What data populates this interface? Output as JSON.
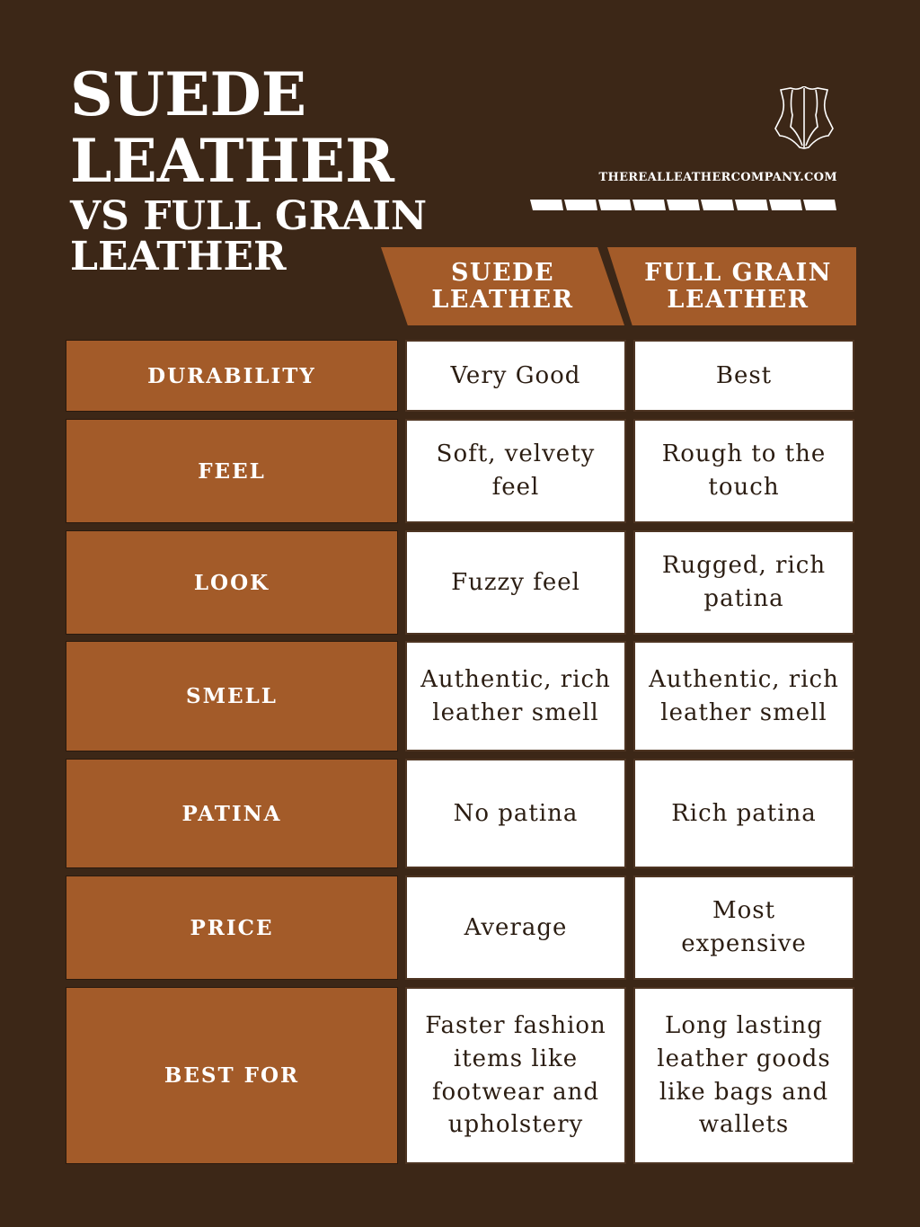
{
  "title": {
    "line1": "SUEDE",
    "line2": "LEATHER",
    "line3": "VS FULL GRAIN",
    "line4": "LEATHER"
  },
  "brand": {
    "website": "THEREALLEATHERCOMPANY.COM",
    "logo_icon": "leather-hide-icon"
  },
  "colors": {
    "background": "#3c2717",
    "accent": "#a35b29",
    "cell": "#ffffff"
  },
  "table": {
    "headers": [
      "SUEDE LEATHER",
      "FULL GRAIN LEATHER"
    ],
    "rows": [
      {
        "label": "DURABILITY",
        "suede": "Very Good",
        "full_grain": "Best"
      },
      {
        "label": "FEEL",
        "suede": "Soft, velvety feel",
        "full_grain": "Rough to the touch"
      },
      {
        "label": "LOOK",
        "suede": "Fuzzy feel",
        "full_grain": "Rugged, rich patina"
      },
      {
        "label": "SMELL",
        "suede": "Authentic, rich leather smell",
        "full_grain": "Authentic, rich leather smell"
      },
      {
        "label": "PATINA",
        "suede": "No patina",
        "full_grain": "Rich patina"
      },
      {
        "label": "PRICE",
        "suede": "Average",
        "full_grain": "Most expensive"
      },
      {
        "label": "BEST FOR",
        "suede": "Faster fashion items like footwear and upholstery",
        "full_grain": "Long lasting leather goods like bags and wallets"
      }
    ]
  }
}
